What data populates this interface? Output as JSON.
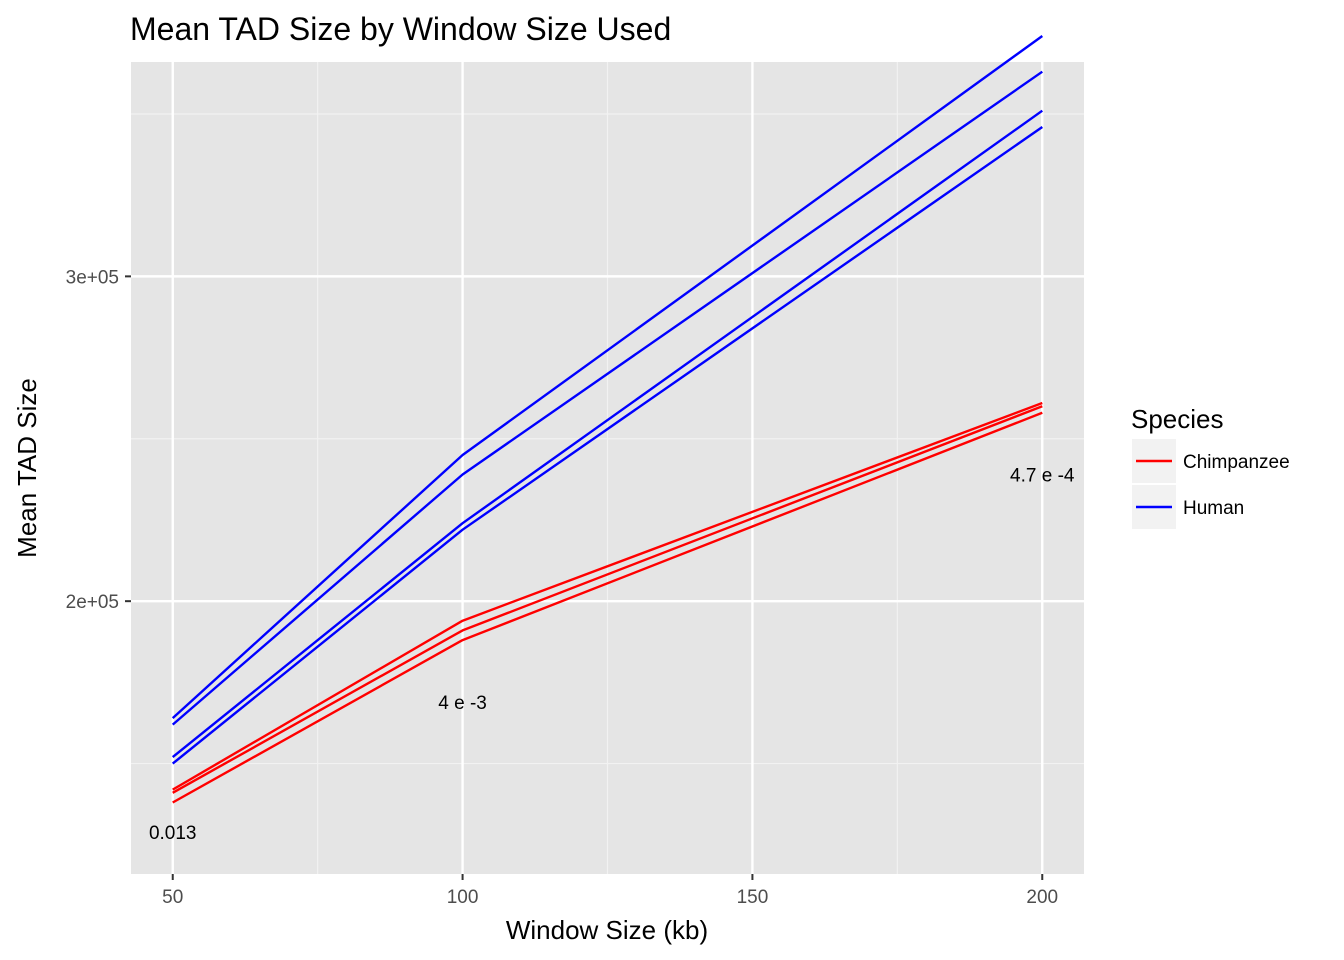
{
  "chart_data": {
    "type": "line",
    "title": "Mean TAD Size by Window Size Used",
    "xlabel": "Window Size (kb)",
    "ylabel": "Mean TAD Size",
    "x": [
      50,
      100,
      200
    ],
    "xlim": [
      42.8,
      207.2
    ],
    "ylim": [
      116000,
      366000
    ],
    "x_ticks": [
      50,
      100,
      150,
      200
    ],
    "x_tick_labels": [
      "50",
      "100",
      "150",
      "200"
    ],
    "x_minor": [
      75,
      125,
      175
    ],
    "y_ticks": [
      200000,
      300000
    ],
    "y_tick_labels": [
      "2e+05",
      "3e+05"
    ],
    "y_minor": [
      150000,
      250000,
      350000
    ],
    "grid": true,
    "legend": {
      "title": "Species",
      "position": "right",
      "entries": [
        {
          "label": "Chimpanzee",
          "color": "#ff0000"
        },
        {
          "label": "Human",
          "color": "#0000ff"
        }
      ]
    },
    "series": [
      {
        "group": "Human",
        "color": "#0000ff",
        "values": [
          164000,
          245000,
          374000
        ]
      },
      {
        "group": "Human",
        "color": "#0000ff",
        "values": [
          162000,
          239000,
          363000
        ]
      },
      {
        "group": "Human",
        "color": "#0000ff",
        "values": [
          152000,
          224000,
          351000
        ]
      },
      {
        "group": "Human",
        "color": "#0000ff",
        "values": [
          150000,
          222000,
          346000
        ]
      },
      {
        "group": "Chimpanzee",
        "color": "#ff0000",
        "values": [
          142000,
          194000,
          261000
        ]
      },
      {
        "group": "Chimpanzee",
        "color": "#ff0000",
        "values": [
          141000,
          191000,
          260000
        ]
      },
      {
        "group": "Chimpanzee",
        "color": "#ff0000",
        "values": [
          138000,
          188000,
          258000
        ]
      }
    ],
    "annotations": [
      {
        "text": "0.013",
        "x": 50,
        "y": 129000
      },
      {
        "text": "4 e -3",
        "x": 100,
        "y": 169000
      },
      {
        "text": "4.7 e -4",
        "x": 200,
        "y": 239000
      }
    ]
  }
}
